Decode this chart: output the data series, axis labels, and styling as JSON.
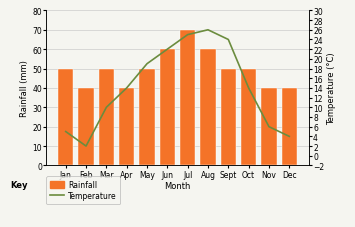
{
  "months": [
    "Jan",
    "Feb",
    "Mar",
    "Apr",
    "May",
    "Jun",
    "Jul",
    "Aug",
    "Sept",
    "Oct",
    "Nov",
    "Dec"
  ],
  "rainfall": [
    50,
    40,
    50,
    40,
    50,
    60,
    70,
    60,
    50,
    50,
    40,
    40
  ],
  "temperature": [
    5,
    2,
    10,
    14,
    19,
    22,
    25,
    26,
    24,
    14,
    6,
    4
  ],
  "bar_color": "#f47328",
  "line_color": "#6b8c3e",
  "ylabel_left": "Rainfall (mm)",
  "ylabel_right": "Temperature (°C)",
  "xlabel": "Month",
  "ylim_left": [
    0,
    80
  ],
  "ylim_right": [
    -2,
    30
  ],
  "yticks_left": [
    0,
    10,
    20,
    30,
    40,
    50,
    60,
    70,
    80
  ],
  "yticks_right": [
    -2,
    0,
    2,
    4,
    6,
    8,
    10,
    12,
    14,
    16,
    18,
    20,
    22,
    24,
    26,
    28,
    30
  ],
  "legend_rainfall": "Rainfall",
  "legend_temperature": "Temperature",
  "key_label": "Key",
  "background_color": "#f5f5f0",
  "grid_color": "#cccccc",
  "label_fontsize": 6,
  "tick_fontsize": 5.5
}
